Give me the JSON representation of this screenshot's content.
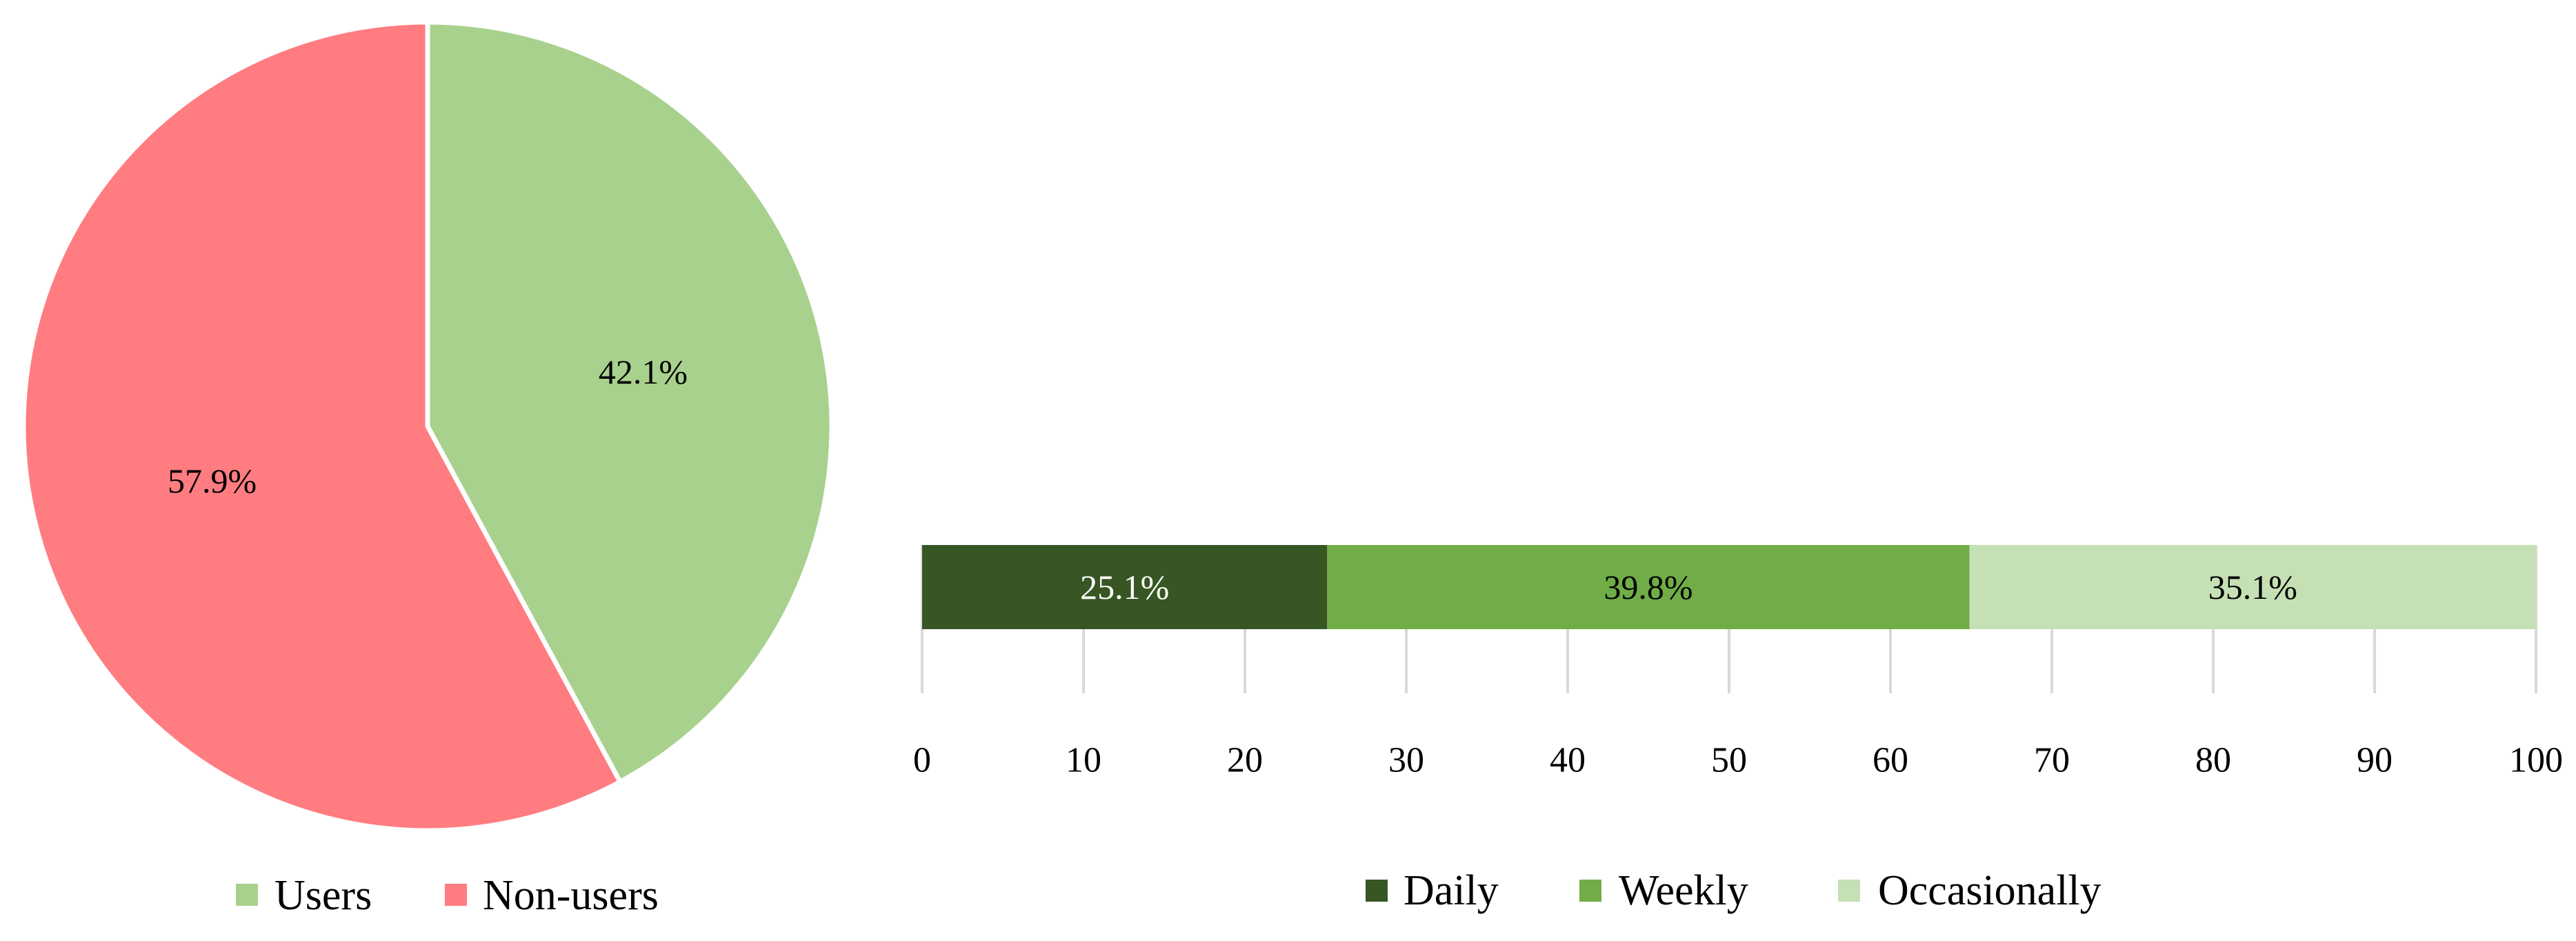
{
  "chart_data": [
    {
      "type": "pie",
      "title": "",
      "slices": [
        {
          "label": "Users",
          "value": 42.1,
          "display": "42.1%",
          "color": "#a9d18e"
        },
        {
          "label": "Non-users",
          "value": 57.9,
          "display": "57.9%",
          "color": "#ff7c80"
        }
      ],
      "start": "12 o'clock",
      "direction": "clockwise",
      "slice_border_color": "#ffffff",
      "legend": {
        "position": "bottom",
        "entries": [
          "Users",
          "Non-users"
        ]
      }
    },
    {
      "type": "bar",
      "orientation": "horizontal",
      "stacked": true,
      "title": "",
      "xlabel": "",
      "ylabel": "",
      "categories": [
        ""
      ],
      "series": [
        {
          "name": "Daily",
          "values": [
            25.1
          ],
          "display": "25.1%",
          "color": "#375623",
          "label_color": "#ffffff"
        },
        {
          "name": "Weekly",
          "values": [
            39.8
          ],
          "display": "39.8%",
          "color": "#70ad47",
          "label_color": "#000000"
        },
        {
          "name": "Occasionally",
          "values": [
            35.1
          ],
          "display": "35.1%",
          "color": "#c5e0b4",
          "label_color": "#000000"
        }
      ],
      "xlim": [
        0,
        100
      ],
      "xticks": [
        0,
        10,
        20,
        30,
        40,
        50,
        60,
        70,
        80,
        90,
        100
      ],
      "xtick_labels": [
        "0",
        "10",
        "20",
        "30",
        "40",
        "50",
        "60",
        "70",
        "80",
        "90",
        "100"
      ],
      "grid": "vertical",
      "grid_color": "#d9d9d9",
      "legend": {
        "position": "bottom",
        "entries": [
          "Daily",
          "Weekly",
          "Occasionally"
        ]
      }
    }
  ]
}
